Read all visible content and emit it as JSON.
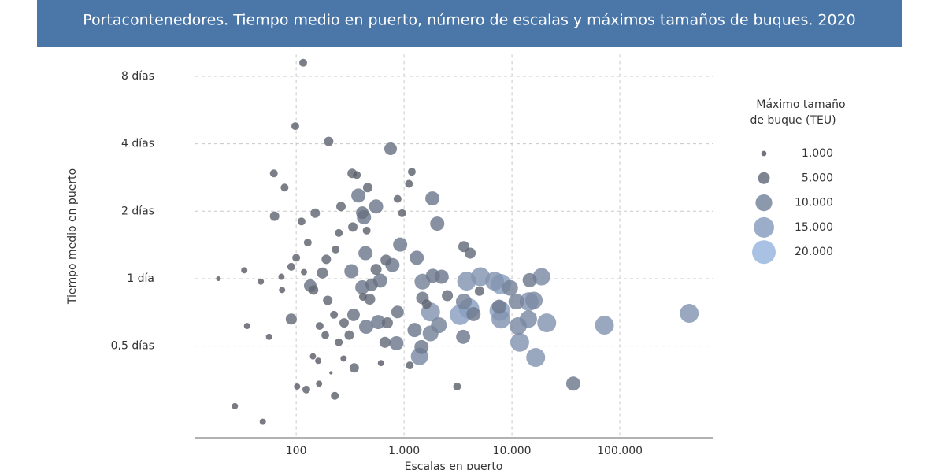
{
  "chart_data": {
    "type": "scatter",
    "title": "Portacontenedores. Tiempo medio en puerto, número de escalas y máximos tamaños de buques. 2020",
    "x_label": "Escalas en puerto",
    "y_label": "Tiempo medio en puerto",
    "x_log": true,
    "y_log": true,
    "grid": true,
    "color_range": [
      "#56565f",
      "#9ab7df"
    ],
    "xlim": [
      11.6,
      726000
    ],
    "ylim": [
      0.195,
      10
    ],
    "xticks": [
      {
        "value": 100,
        "label": "100"
      },
      {
        "value": 1000,
        "label": "1.000"
      },
      {
        "value": 10000,
        "label": "10.000"
      },
      {
        "value": 100000,
        "label": "100.000"
      }
    ],
    "yticks": [
      {
        "value": 0.5,
        "label": "0,5 días"
      },
      {
        "value": 1,
        "label": "1 día"
      },
      {
        "value": 2,
        "label": "2 días"
      },
      {
        "value": 4,
        "label": "4 días"
      },
      {
        "value": 8,
        "label": "8 días"
      }
    ],
    "x": [
      116,
      98,
      200,
      750,
      62,
      78,
      330,
      365,
      1180,
      1110,
      460,
      377,
      1830,
      870,
      260,
      550,
      410,
      425,
      63,
      150,
      960,
      112,
      2030,
      335,
      248,
      450,
      128,
      920,
      232,
      3580,
      4100,
      439,
      100,
      190,
      1310,
      680,
      780,
      33,
      90,
      325,
      550,
      175,
      118,
      73,
      19,
      1850,
      2230,
      600,
      1480,
      3800,
      5100,
      6900,
      7900,
      9600,
      14600,
      18800,
      47,
      74,
      135,
      145,
      410,
      500,
      2520,
      1480,
      5000,
      415,
      196,
      480,
      1620,
      3580,
      4000,
      7600,
      11000,
      14400,
      16000,
      870,
      340,
      4400,
      7700,
      1760,
      3300,
      90,
      224,
      278,
      445,
      575,
      700,
      2100,
      1250,
      7900,
      14200,
      21000,
      11400,
      72000,
      440000,
      56,
      35,
      165,
      248,
      310,
      186,
      665,
      850,
      1760,
      3530,
      1450,
      11800,
      1390,
      16600,
      345,
      1130,
      275,
      143,
      160,
      610,
      210,
      37000,
      3100,
      102,
      124,
      163,
      228,
      27,
      49
    ],
    "values": [
      9.2,
      4.8,
      4.1,
      3.8,
      2.95,
      2.55,
      2.95,
      2.9,
      3.0,
      2.65,
      2.55,
      2.35,
      2.28,
      2.27,
      2.1,
      2.1,
      1.97,
      1.88,
      1.9,
      1.96,
      1.96,
      1.8,
      1.76,
      1.7,
      1.6,
      1.64,
      1.45,
      1.42,
      1.35,
      1.39,
      1.3,
      1.3,
      1.24,
      1.22,
      1.24,
      1.21,
      1.15,
      1.09,
      1.13,
      1.08,
      1.1,
      1.06,
      1.07,
      1.02,
      1.0,
      1.03,
      1.02,
      0.98,
      0.97,
      0.975,
      1.02,
      0.975,
      0.945,
      0.91,
      0.985,
      1.02,
      0.97,
      0.89,
      0.93,
      0.89,
      0.915,
      0.94,
      0.84,
      0.82,
      0.88,
      0.83,
      0.8,
      0.81,
      0.77,
      0.79,
      0.735,
      0.75,
      0.79,
      0.79,
      0.8,
      0.71,
      0.69,
      0.695,
      0.72,
      0.71,
      0.69,
      0.66,
      0.69,
      0.635,
      0.61,
      0.64,
      0.635,
      0.62,
      0.59,
      0.66,
      0.66,
      0.635,
      0.615,
      0.62,
      0.7,
      0.55,
      0.615,
      0.615,
      0.52,
      0.56,
      0.56,
      0.52,
      0.515,
      0.57,
      0.55,
      0.495,
      0.52,
      0.45,
      0.445,
      0.4,
      0.41,
      0.44,
      0.45,
      0.43,
      0.42,
      0.38,
      0.34,
      0.33,
      0.33,
      0.32,
      0.34,
      0.3,
      0.27,
      0.23
    ],
    "sizes": [
      2200,
      2200,
      3200,
      5700,
      2200,
      2200,
      3200,
      2200,
      2200,
      2200,
      3200,
      7200,
      7200,
      2200,
      3200,
      7200,
      5700,
      7200,
      3200,
      3200,
      2200,
      2200,
      7200,
      3200,
      2200,
      2200,
      2200,
      7200,
      2200,
      4400,
      4400,
      7200,
      2200,
      3200,
      7200,
      4400,
      7200,
      1400,
      2200,
      7200,
      4400,
      4400,
      1400,
      1400,
      800,
      7200,
      7200,
      7200,
      9000,
      12800,
      12800,
      12800,
      15000,
      9000,
      7200,
      10800,
      1400,
      1400,
      5700,
      3200,
      7200,
      5700,
      4400,
      5700,
      3200,
      2200,
      3200,
      4400,
      3200,
      9000,
      15000,
      7200,
      9000,
      12800,
      10800,
      5700,
      5700,
      7200,
      15000,
      12800,
      15000,
      4400,
      2200,
      3200,
      7200,
      7200,
      4400,
      9000,
      7200,
      12800,
      10800,
      12800,
      10800,
      12800,
      12800,
      1400,
      1400,
      2200,
      2200,
      3200,
      2200,
      4400,
      7200,
      9000,
      7200,
      7200,
      12800,
      10800,
      12800,
      3200,
      2200,
      1400,
      1400,
      1400,
      1400,
      400,
      7200,
      2200,
      1400,
      2200,
      1400,
      2200,
      1400,
      1400
    ],
    "size_legend": {
      "title": [
        "Máximo tamaño",
        "de buque (TEU)"
      ],
      "values": [
        {
          "value": 1000,
          "label": "1.000"
        },
        {
          "value": 5000,
          "label": "5.000"
        },
        {
          "value": 10000,
          "label": "10.000"
        },
        {
          "value": 15000,
          "label": "15.000"
        },
        {
          "value": 20000,
          "label": "20.000"
        }
      ]
    }
  }
}
